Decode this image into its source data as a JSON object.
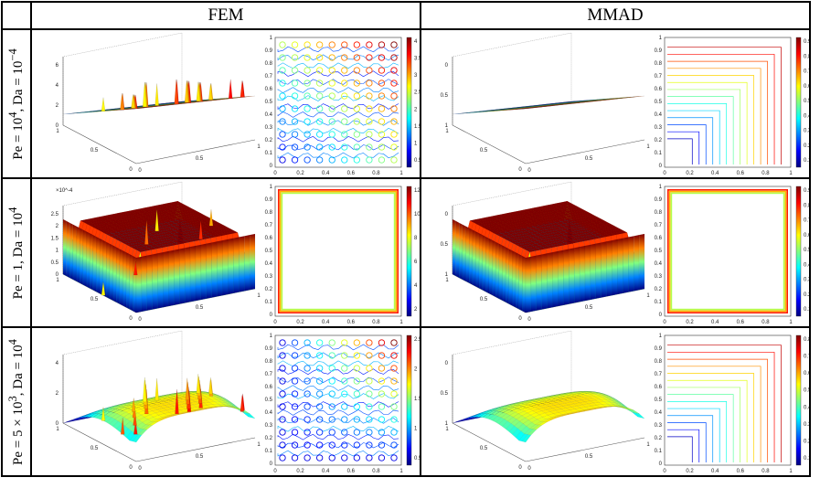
{
  "header": {
    "col_fem": "FEM",
    "col_mmad": "MMAD"
  },
  "rows": [
    {
      "label": "Pe = 10^4, Da = 10^-4",
      "fem": {
        "surface_z_ticks": [
          "0",
          "2",
          "4",
          "6"
        ],
        "surface_x_ticks": [
          "1",
          "0.5",
          "0"
        ],
        "surface_y_ticks": [
          "0",
          "0.5",
          "1"
        ],
        "contour_y_ticks": [
          "1",
          "0.9",
          "0.8",
          "0.7",
          "0.6",
          "0.5",
          "0.4",
          "0.3",
          "0.2",
          "0.1",
          "0"
        ],
        "contour_x_ticks": [
          "0",
          "0.2",
          "0.4",
          "0.6",
          "0.8",
          "1"
        ],
        "colorbar_ticks": [
          "4",
          "3.5",
          "3",
          "2.5",
          "2",
          "1.5",
          "1",
          "0.5"
        ]
      },
      "mmad": {
        "surface_z_ticks": [
          "1",
          "0.5",
          "0"
        ],
        "surface_x_ticks": [
          "1",
          "0.5",
          "0"
        ],
        "surface_y_ticks": [
          "0",
          "0.5",
          "1"
        ],
        "contour_y_ticks": [
          "1",
          "0.9",
          "0.8",
          "0.7",
          "0.6",
          "0.5",
          "0.4",
          "0.3",
          "0.2",
          "0.1",
          "0"
        ],
        "contour_x_ticks": [
          "0",
          "0.2",
          "0.4",
          "0.6",
          "0.8",
          "1"
        ],
        "colorbar_ticks": [
          "0.9",
          "0.8",
          "0.7",
          "0.6",
          "0.5",
          "0.4",
          "0.3",
          "0.2",
          "0.1"
        ]
      }
    },
    {
      "label": "Pe = 1, Da = 10^4",
      "fem": {
        "surface_exp": "×10^-4",
        "surface_z_ticks": [
          "0",
          "0.5",
          "1",
          "1.5",
          "2",
          "2.5"
        ],
        "surface_x_ticks": [
          "1",
          "0.5",
          "0"
        ],
        "surface_y_ticks": [
          "0",
          "0.5",
          "1"
        ],
        "contour_y_ticks": [
          "1",
          "0.9",
          "0.8",
          "0.7",
          "0.6",
          "0.5",
          "0.4",
          "0.3",
          "0.2",
          "0.1",
          "0"
        ],
        "contour_x_ticks": [
          "0",
          "0.2",
          "0.4",
          "0.6",
          "0.8",
          "1"
        ],
        "colorbar_ticks": [
          "12",
          "10",
          "8",
          "6",
          "4",
          "2"
        ]
      },
      "mmad": {
        "surface_z_ticks": [
          "1",
          "0.5",
          "0"
        ],
        "surface_x_ticks": [
          "1",
          "0.5",
          "0"
        ],
        "surface_y_ticks": [
          "0",
          "0.5",
          "1"
        ],
        "contour_y_ticks": [
          "1",
          "0.9",
          "0.8",
          "0.7",
          "0.6",
          "0.5",
          "0.4",
          "0.3",
          "0.2",
          "0.1",
          "0"
        ],
        "contour_x_ticks": [
          "0",
          "0.2",
          "0.4",
          "0.6",
          "0.8",
          "1"
        ],
        "colorbar_ticks": [
          "0.9",
          "0.8",
          "0.7",
          "0.6",
          "0.5",
          "0.4",
          "0.3",
          "0.2",
          "0.1"
        ]
      }
    },
    {
      "label": "Pe = 5 × 10^3, Da = 10^4",
      "fem": {
        "surface_z_ticks": [
          "0",
          "2",
          "4"
        ],
        "surface_x_ticks": [
          "1",
          "0.5",
          "0"
        ],
        "surface_y_ticks": [
          "0",
          "0.5",
          "1"
        ],
        "contour_y_ticks": [
          "1",
          "0.9",
          "0.8",
          "0.7",
          "0.6",
          "0.5",
          "0.4",
          "0.3",
          "0.2",
          "0.1",
          "0"
        ],
        "contour_x_ticks": [
          "0",
          "0.2",
          "0.4",
          "0.6",
          "0.8",
          "1"
        ],
        "colorbar_ticks": [
          "2.5",
          "2",
          "1.5",
          "1",
          "0.5"
        ]
      },
      "mmad": {
        "surface_z_ticks": [
          "1",
          "0.5",
          "0"
        ],
        "surface_x_ticks": [
          "1",
          "0.5",
          "0"
        ],
        "surface_y_ticks": [
          "0",
          "0.5",
          "1"
        ],
        "contour_y_ticks": [
          "1",
          "0.9",
          "0.8",
          "0.7",
          "0.6",
          "0.5",
          "0.4",
          "0.3",
          "0.2",
          "0.1",
          "0"
        ],
        "contour_x_ticks": [
          "0",
          "0.2",
          "0.4",
          "0.6",
          "0.8",
          "1"
        ],
        "colorbar_ticks": [
          "0.8",
          "0.7",
          "0.6",
          "0.5",
          "0.4",
          "0.3",
          "0.2",
          "0.1"
        ]
      }
    }
  ]
}
